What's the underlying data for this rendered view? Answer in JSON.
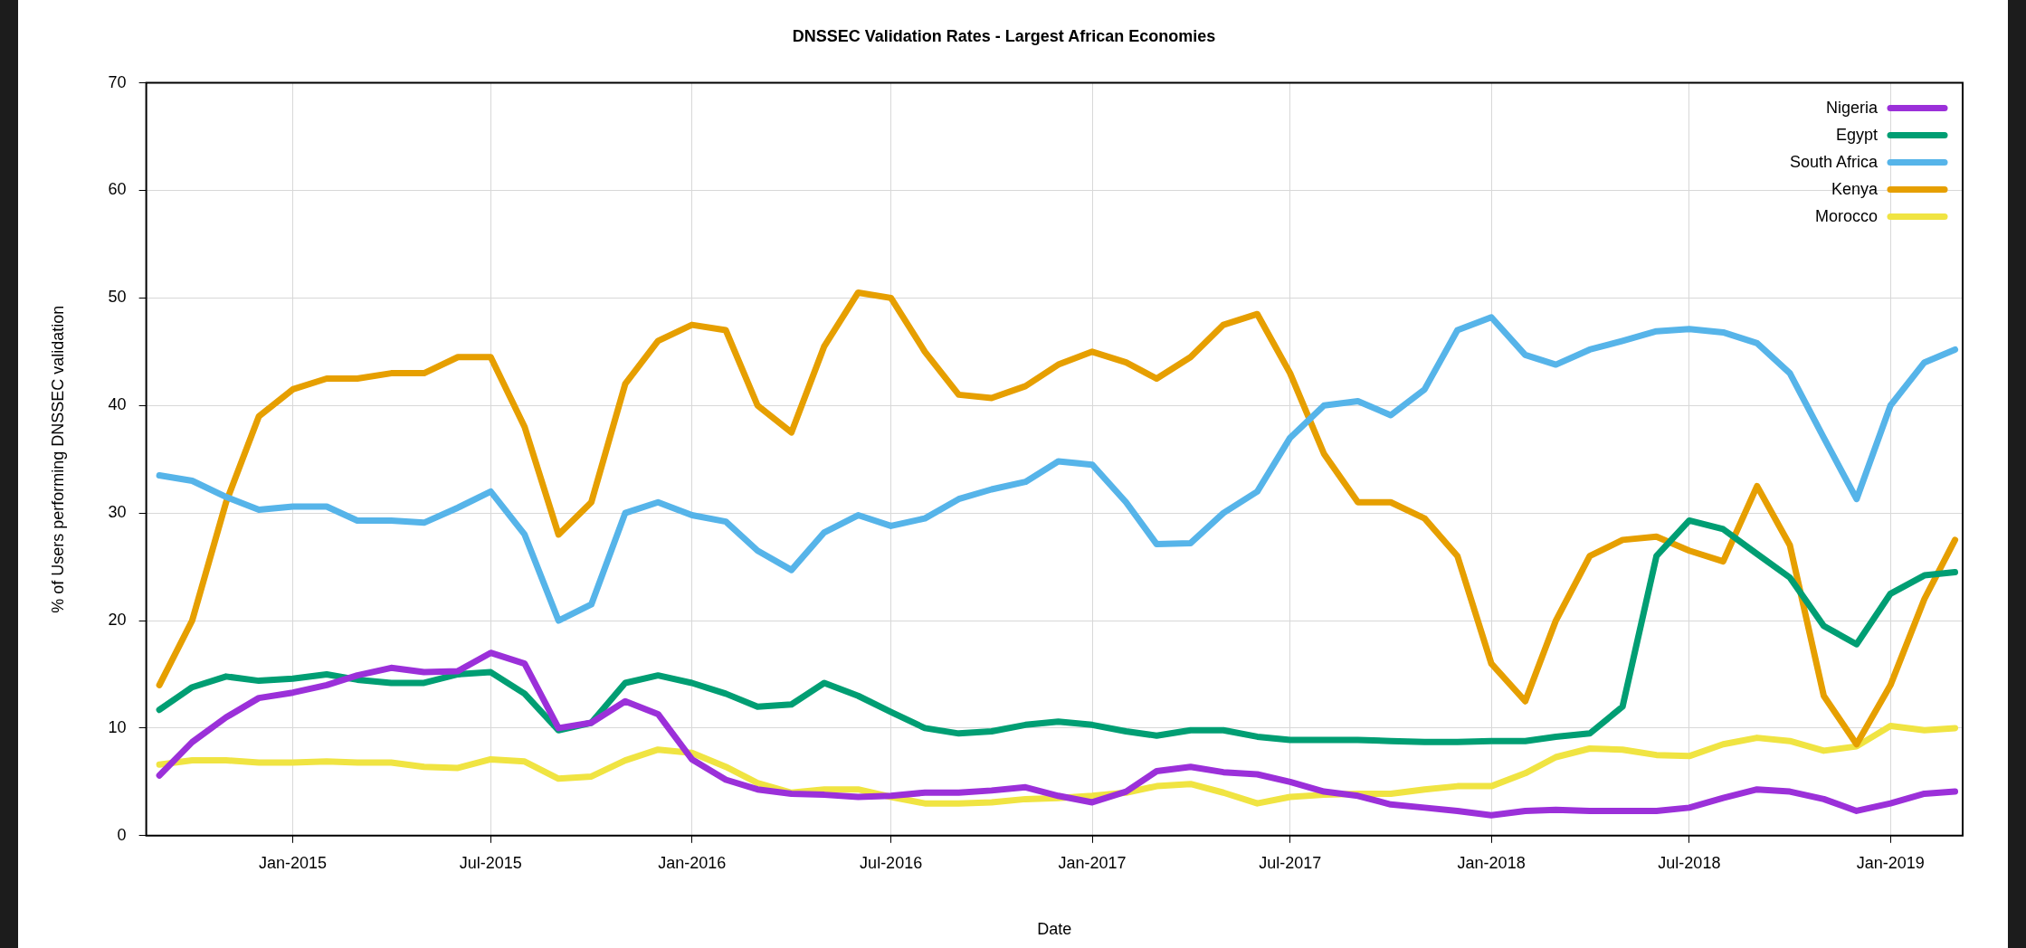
{
  "chart_data": {
    "type": "line",
    "title": "DNSSEC Validation Rates - Largest African Economies",
    "xlabel": "Date",
    "ylabel": "% of Users performing DNSSEC validation",
    "x": [
      "2014-09",
      "2014-10",
      "2014-11",
      "2014-12",
      "2015-01",
      "2015-02",
      "2015-03",
      "2015-04",
      "2015-05",
      "2015-06",
      "2015-07",
      "2015-08",
      "2015-09",
      "2015-10",
      "2015-11",
      "2015-12",
      "2016-01",
      "2016-02",
      "2016-03",
      "2016-04",
      "2016-05",
      "2016-06",
      "2016-07",
      "2016-08",
      "2016-09",
      "2016-10",
      "2016-11",
      "2016-12",
      "2017-01",
      "2017-02",
      "2017-03",
      "2017-04",
      "2017-05",
      "2017-06",
      "2017-07",
      "2017-08",
      "2017-09",
      "2017-10",
      "2017-11",
      "2017-12",
      "2018-01",
      "2018-02",
      "2018-03",
      "2018-04",
      "2018-05",
      "2018-06",
      "2018-07",
      "2018-08",
      "2018-09",
      "2018-10",
      "2018-11",
      "2018-12",
      "2019-01",
      "2019-02",
      "2019-03"
    ],
    "xlim": [
      "2014-08-20",
      "2019-03-08"
    ],
    "xticks": [
      {
        "value": "2015-01",
        "label": "Jan-2015"
      },
      {
        "value": "2015-07",
        "label": "Jul-2015"
      },
      {
        "value": "2016-01",
        "label": "Jan-2016"
      },
      {
        "value": "2016-07",
        "label": "Jul-2016"
      },
      {
        "value": "2017-01",
        "label": "Jan-2017"
      },
      {
        "value": "2017-07",
        "label": "Jul-2017"
      },
      {
        "value": "2018-01",
        "label": "Jan-2018"
      },
      {
        "value": "2018-07",
        "label": "Jul-2018"
      },
      {
        "value": "2019-01",
        "label": "Jan-2019"
      }
    ],
    "ylim": [
      0,
      70
    ],
    "yticks": [
      0,
      10,
      20,
      30,
      40,
      50,
      60,
      70
    ],
    "grid": true,
    "legend": "top right",
    "series": [
      {
        "name": "Nigeria",
        "color": "#9b30d9",
        "values": [
          5.6,
          8.7,
          11,
          12.8,
          13.3,
          14,
          14.9,
          15.6,
          15.2,
          15.3,
          17,
          16,
          10,
          10.5,
          12.5,
          11.3,
          7.1,
          5.2,
          4.3,
          3.9,
          3.8,
          3.6,
          3.7,
          4,
          4,
          4.2,
          4.5,
          3.7,
          3.1,
          4.1,
          6,
          6.4,
          5.9,
          5.7,
          5,
          4.1,
          3.7,
          2.9,
          2.6,
          2.3,
          1.9,
          2.3,
          2.4,
          2.3,
          2.3,
          2.3,
          2.6,
          3.5,
          4.3,
          4.1,
          3.4,
          2.3,
          3,
          3.9,
          4.1
        ]
      },
      {
        "name": "Egypt",
        "color": "#009e73",
        "values": [
          11.7,
          13.8,
          14.8,
          14.4,
          14.6,
          15,
          14.5,
          14.2,
          14.2,
          15,
          15.2,
          13.2,
          9.8,
          10.5,
          14.2,
          14.9,
          14.2,
          13.2,
          12,
          12.2,
          14.2,
          13,
          11.5,
          10,
          9.5,
          9.7,
          10.3,
          10.6,
          10.3,
          9.7,
          9.3,
          9.8,
          9.8,
          9.2,
          8.9,
          8.9,
          8.9,
          8.8,
          8.7,
          8.7,
          8.8,
          8.8,
          9.2,
          9.5,
          12,
          26,
          29.3,
          28.5,
          26.2,
          24,
          19.5,
          17.8,
          22.5,
          24.2,
          24.5
        ]
      },
      {
        "name": "South Africa",
        "color": "#56b4e9",
        "values": [
          33.5,
          33,
          31.5,
          30.3,
          30.6,
          30.6,
          29.3,
          29.3,
          29.1,
          30.5,
          32,
          28,
          20,
          21.5,
          30,
          31,
          29.8,
          29.2,
          26.5,
          24.7,
          28.2,
          29.8,
          28.8,
          29.5,
          31.3,
          32.2,
          32.9,
          34.8,
          34.5,
          31,
          27.1,
          27.2,
          30,
          32,
          37,
          40,
          40.4,
          39.1,
          41.5,
          47,
          48.2,
          44.7,
          43.8,
          45.2,
          46,
          46.9,
          47.1,
          46.8,
          45.8,
          43,
          37,
          31.3,
          40,
          44,
          45.2
        ]
      },
      {
        "name": "Kenya",
        "color": "#e69f00",
        "values": [
          14,
          20,
          31,
          39,
          41.5,
          42.5,
          42.5,
          43,
          43,
          44.5,
          44.5,
          38,
          28,
          31,
          42,
          46,
          47.5,
          47,
          40,
          37.5,
          45.5,
          50.5,
          50,
          45,
          41,
          40.7,
          41.8,
          43.8,
          45,
          44,
          42.5,
          44.5,
          47.5,
          48.5,
          43,
          35.5,
          31,
          31,
          29.5,
          26,
          16,
          12.5,
          20,
          26,
          27.5,
          27.8,
          26.5,
          25.5,
          32.5,
          27,
          13,
          8.5,
          14,
          22,
          27.5
        ]
      },
      {
        "name": "Morocco",
        "color": "#f0e442",
        "values": [
          6.6,
          7,
          7,
          6.8,
          6.8,
          6.9,
          6.8,
          6.8,
          6.4,
          6.3,
          7.1,
          6.9,
          5.3,
          5.5,
          7,
          8,
          7.7,
          6.4,
          4.9,
          4,
          4.3,
          4.3,
          3.6,
          3,
          3,
          3.1,
          3.4,
          3.5,
          3.7,
          4,
          4.6,
          4.8,
          4,
          3,
          3.6,
          3.8,
          3.9,
          3.9,
          4.3,
          4.6,
          4.6,
          5.8,
          7.3,
          8.1,
          8,
          7.5,
          7.4,
          8.5,
          9.1,
          8.8,
          7.9,
          8.3,
          10.2,
          9.8,
          10
        ]
      }
    ]
  }
}
